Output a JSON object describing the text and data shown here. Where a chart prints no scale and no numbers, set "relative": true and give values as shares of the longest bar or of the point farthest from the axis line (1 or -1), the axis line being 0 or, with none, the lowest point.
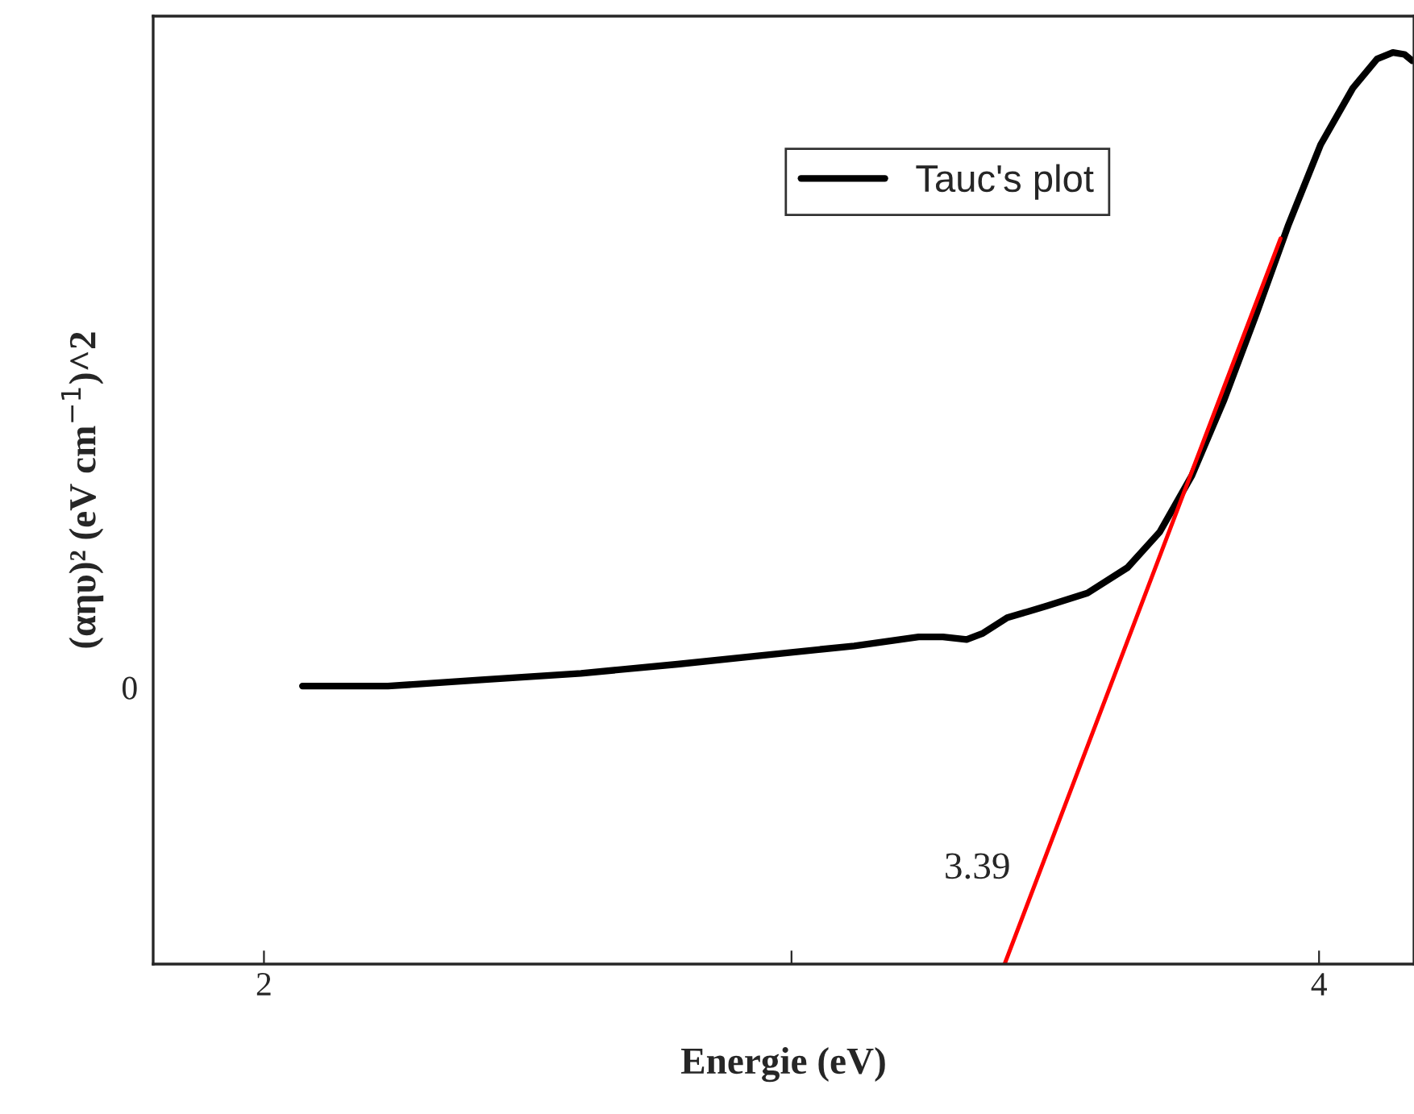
{
  "chart_data": {
    "type": "line",
    "relative": true,
    "xlabel": "Energie (eV)",
    "ylabel": "(αηυ)² (eV cm$^{−1}$)^2",
    "xlim": [
      1.79,
      4.18
    ],
    "xticks": [
      2,
      {
        "value": 3,
        "label": null
      },
      4
    ],
    "legend": "top",
    "grid": false,
    "marker": "none",
    "line_style": "solid",
    "annotations": [
      "0",
      "3.39"
    ],
    "series": [
      {
        "name": "Tauc's plot",
        "color": "#000000",
        "x": [
          2.073,
          2.235,
          2.418,
          2.601,
          2.784,
          2.966,
          3.119,
          3.241,
          3.287,
          3.332,
          3.363,
          3.409,
          3.485,
          3.561,
          3.637,
          3.698,
          3.759,
          3.82,
          3.881,
          3.942,
          4.003,
          4.064,
          4.11,
          4.14,
          4.162,
          4.177
        ],
        "values": [
          0.305,
          0.305,
          0.312,
          0.319,
          0.329,
          0.34,
          0.349,
          0.359,
          0.359,
          0.356,
          0.363,
          0.38,
          0.393,
          0.407,
          0.435,
          0.474,
          0.536,
          0.619,
          0.713,
          0.811,
          0.899,
          0.961,
          0.993,
          1.0,
          0.998,
          0.991
        ]
      },
      {
        "type": "line",
        "color": "#ff0000",
        "x": [
          3.404,
          3.927
        ],
        "values": [
          0,
          0.796
        ]
      }
    ]
  }
}
